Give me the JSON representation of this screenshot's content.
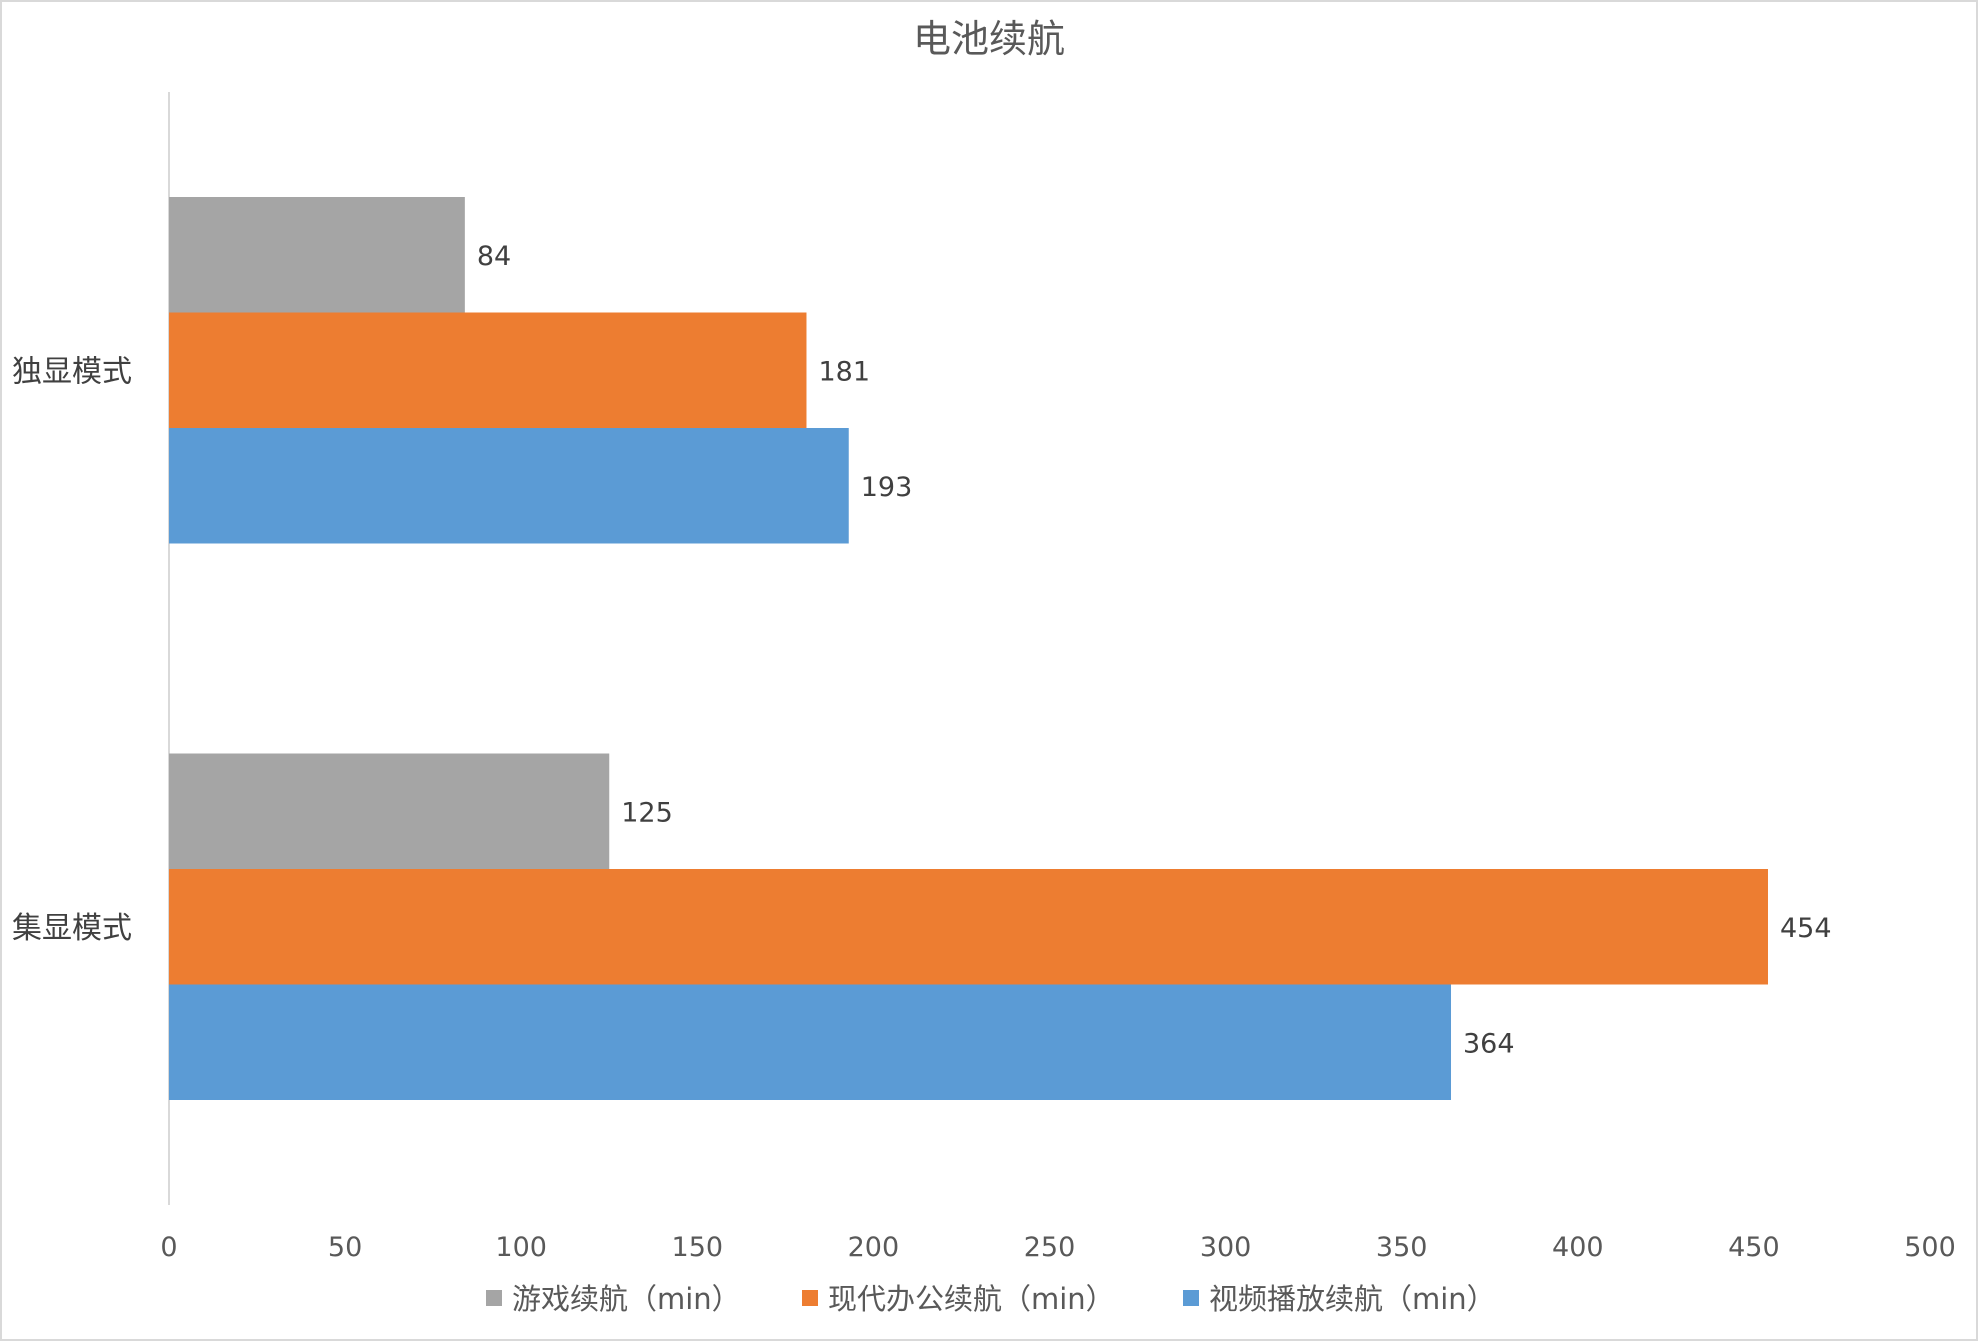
{
  "chart_data": {
    "type": "bar",
    "orientation": "horizontal",
    "title": "电池续航",
    "categories": [
      "独显模式",
      "集显模式"
    ],
    "series": [
      {
        "name": "游戏续航（min）",
        "values": [
          84,
          125
        ],
        "color": "#a5a5a5"
      },
      {
        "name": "现代办公续航（min）",
        "values": [
          181,
          454
        ],
        "color": "#ed7d31"
      },
      {
        "name": "视频播放续航（min）",
        "values": [
          193,
          364
        ],
        "color": "#5b9bd5"
      }
    ],
    "xlim": [
      0,
      500
    ],
    "xticks": [
      "0",
      "50",
      "100",
      "150",
      "200",
      "250",
      "300",
      "350",
      "400",
      "450",
      "500"
    ],
    "xlabel": "",
    "ylabel": "",
    "grid": false,
    "legend_position": "bottom",
    "data_labels": true
  }
}
